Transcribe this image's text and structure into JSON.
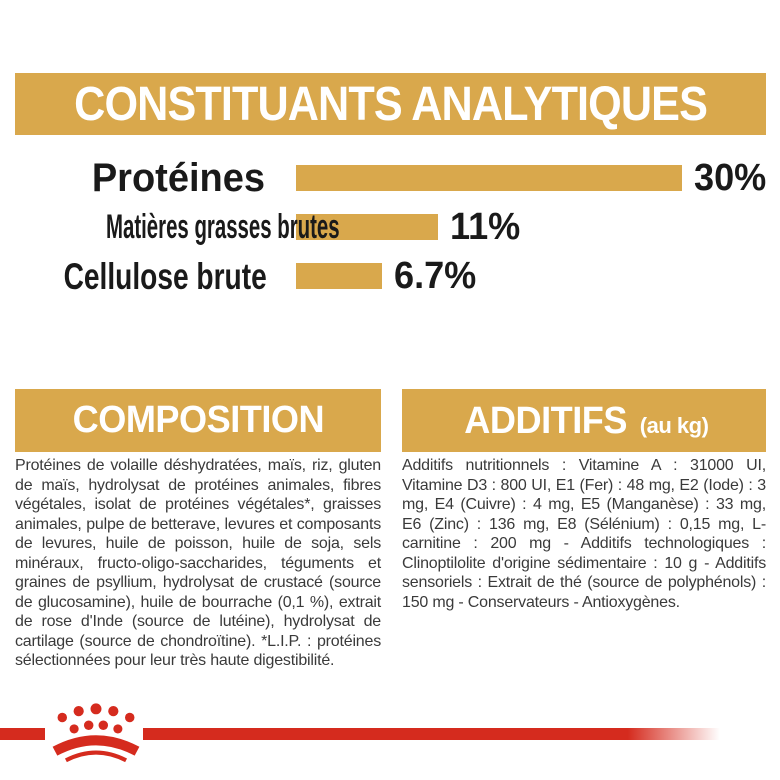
{
  "colors": {
    "gold": "#D9A84C",
    "brand_red": "#D52B1E",
    "heading_text": "#ffffff",
    "chart_label_text": "#1a1a1a",
    "body_text": "#3a3a3a",
    "background": "#ffffff"
  },
  "analytical_section": {
    "title": "CONSTITUANTS ANALYTIQUES"
  },
  "chart_data": {
    "type": "bar",
    "orientation": "horizontal",
    "title": "CONSTITUANTS ANALYTIQUES",
    "categories": [
      "Protéines",
      "Matières grasses brutes",
      "Cellulose brute"
    ],
    "values": [
      30,
      11,
      6.7
    ],
    "value_labels": [
      "30%",
      "11%",
      "6.7%"
    ],
    "unit": "%",
    "xlim": [
      0,
      30
    ],
    "grid": false,
    "legend": false,
    "bar_color": "#D9A84C"
  },
  "composition_section": {
    "title": "COMPOSITION",
    "body": "Protéines de volaille déshydratées, maïs, riz, gluten de maïs, hydrolysat de protéines animales, fibres végétales, isolat de protéines végétales*, graisses animales, pulpe de betterave, levures et composants de levures, huile de poisson, huile de soja, sels minéraux, fructo-oligo-saccharides, téguments et graines de psyllium, hydrolysat de crustacé (source de glucosamine), huile de bourrache (0,1 %), extrait de rose d'Inde (source de lutéine), hydrolysat de cartilage (source de chondroïtine). *L.I.P. : protéines sélectionnées pour leur très haute digestibilité."
  },
  "additives_section": {
    "title": "ADDITIFS",
    "title_note": "(au kg)",
    "body": "Additifs nutritionnels : Vitamine A : 31000 UI, Vitamine D3 : 800 UI, E1 (Fer) : 48 mg, E2 (Iode) : 3 mg, E4 (Cuivre) : 4 mg, E5 (Manganèse) : 33 mg, E6 (Zinc) : 136 mg, E8 (Sélénium) : 0,15 mg, L-carnitine : 200 mg - Additifs technologiques : Clinoptilolite d'origine sédimentaire : 10 g - Additifs sensoriels : Extrait de thé (source de polyphénols) : 150 mg - Conservateurs - Antioxygènes."
  },
  "footer": {
    "brand_logo": "royal-canin-crown"
  }
}
